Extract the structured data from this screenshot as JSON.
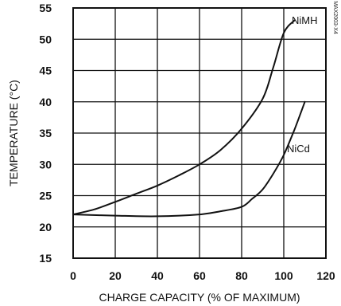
{
  "chart_data": {
    "type": "line",
    "xlabel": "CHARGE CAPACITY (% OF MAXIMUM)",
    "ylabel": "TEMPERATURE (°C)",
    "xlim": [
      0,
      120
    ],
    "ylim": [
      15,
      55
    ],
    "x_ticks": [
      0,
      20,
      40,
      60,
      80,
      100,
      120
    ],
    "y_ticks": [
      15,
      20,
      25,
      30,
      35,
      40,
      45,
      50,
      55
    ],
    "x_tick_labels": [
      "0",
      "20",
      "40",
      "60",
      "80",
      "100",
      "120"
    ],
    "y_tick_labels": [
      "15",
      "20",
      "25",
      "30",
      "35",
      "40",
      "45",
      "50",
      "55"
    ],
    "grid": true,
    "series": [
      {
        "name": "NiMH",
        "x": [
          0,
          10,
          20,
          30,
          40,
          50,
          60,
          70,
          80,
          90,
          95,
          100,
          105
        ],
        "y": [
          22,
          22.8,
          24,
          25.3,
          26.6,
          28.2,
          30,
          32.3,
          35.7,
          40.5,
          45.5,
          51,
          53
        ]
      },
      {
        "name": "NiCd",
        "x": [
          0,
          20,
          40,
          60,
          70,
          80,
          85,
          90,
          95,
          100,
          105,
          110
        ],
        "y": [
          22,
          21.8,
          21.7,
          22,
          22.5,
          23.2,
          24.5,
          26,
          28.5,
          31.5,
          35.5,
          40
        ]
      }
    ],
    "figure_code": "MAX2003-X4",
    "colors": {
      "line": "#111111",
      "grid": "#111111",
      "background": "#ffffff"
    }
  }
}
